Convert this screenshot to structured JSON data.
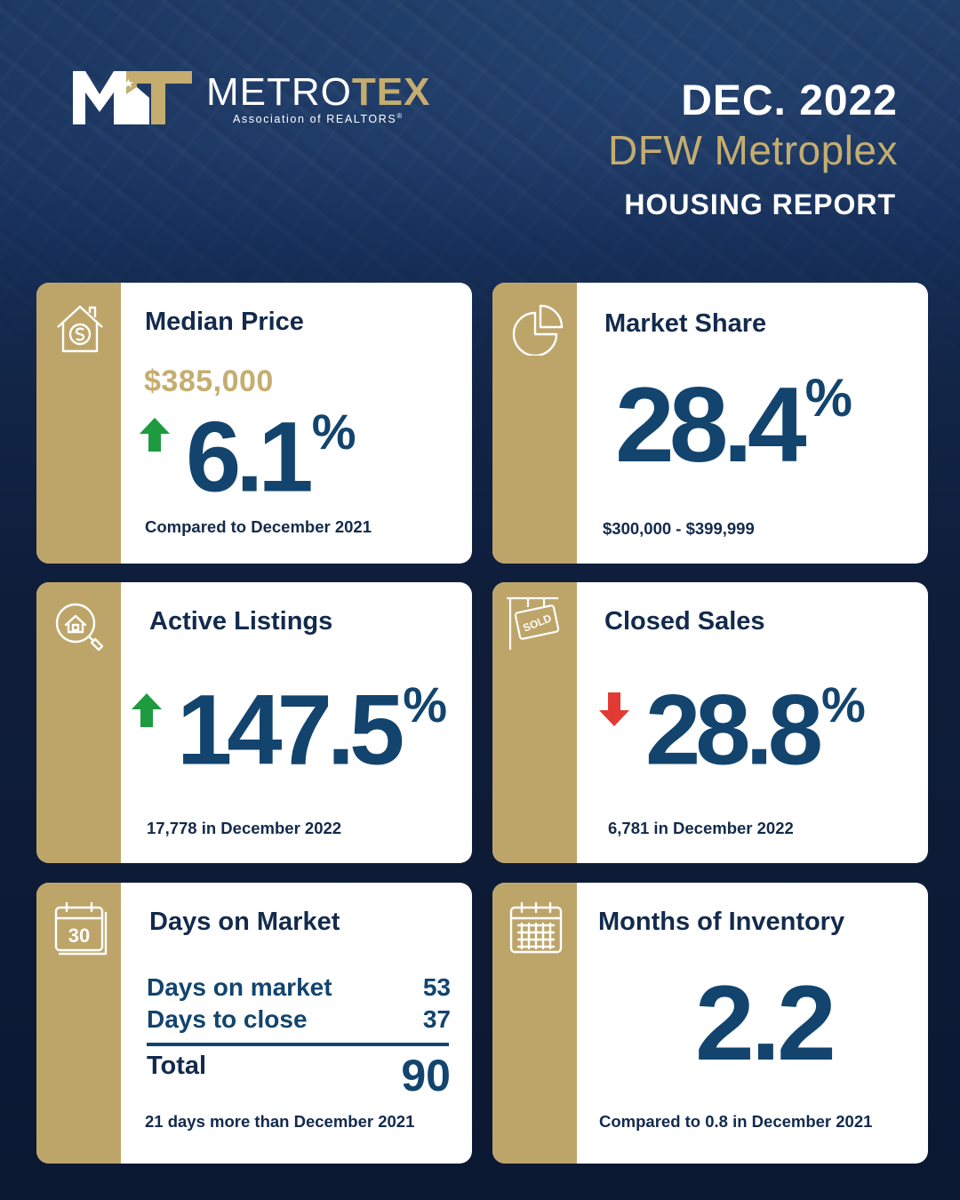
{
  "brand": {
    "name_part1": "METRO",
    "name_part2": "TEX",
    "subtitle": "Association of REALTORS",
    "reg_mark": "®",
    "logo_letters": "MT"
  },
  "header": {
    "date": "DEC. 2022",
    "region": "DFW Metroplex",
    "title": "HOUSING REPORT"
  },
  "colors": {
    "navy": "#12446e",
    "gold": "#bda56a",
    "up": "#1e9a3f",
    "down": "#e23b33"
  },
  "cards": {
    "median_price": {
      "title": "Median Price",
      "price": "$385,000",
      "change": "6.1",
      "unit": "%",
      "direction": "up",
      "note": "Compared to December 2021",
      "icon": "house-dollar-icon"
    },
    "market_share": {
      "title": "Market Share",
      "value": "28.4",
      "unit": "%",
      "note": "$300,000 - $399,999",
      "icon": "pie-chart-icon"
    },
    "active_listings": {
      "title": "Active Listings",
      "change": "147.5",
      "unit": "%",
      "direction": "up",
      "note": "17,778 in December 2022",
      "icon": "house-search-icon"
    },
    "closed_sales": {
      "title": "Closed Sales",
      "change": "28.8",
      "unit": "%",
      "direction": "down",
      "note": "6,781 in December 2022",
      "icon": "sold-sign-icon",
      "icon_text": "SOLD"
    },
    "days_on_market": {
      "title": "Days on Market",
      "rows": [
        {
          "label": "Days on market",
          "value": "53"
        },
        {
          "label": "Days to close",
          "value": "37"
        }
      ],
      "total_label": "Total",
      "total_value": "90",
      "note": "21 days more than December 2021",
      "icon": "calendar-30-icon",
      "icon_text": "30"
    },
    "months_inventory": {
      "title": "Months of Inventory",
      "value": "2.2",
      "note": "Compared to 0.8 in December 2021",
      "icon": "calendar-grid-icon"
    }
  }
}
